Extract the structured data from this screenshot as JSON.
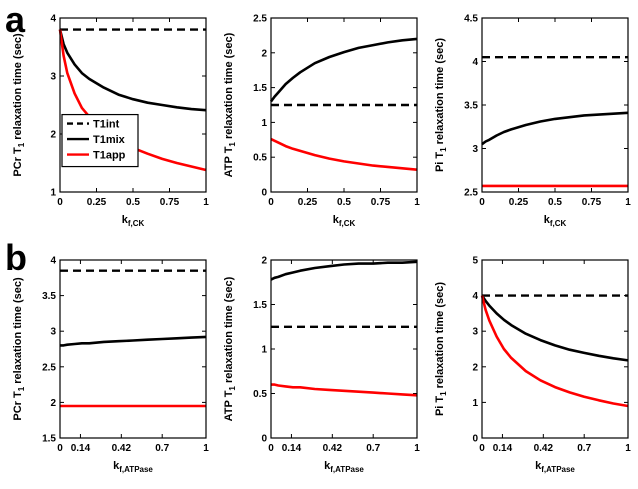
{
  "panels": {
    "a": "a",
    "b": "b"
  },
  "colors": {
    "t1int": "#000000",
    "t1mix": "#000000",
    "t1app": "#ff0000"
  },
  "chart_data": [
    {
      "type": "line",
      "panel": "a",
      "xlabel": {
        "prefix": "k",
        "sub": "f,CK"
      },
      "ylabel": {
        "prefix": "PCr T",
        "sub": "1",
        "suffix": " relaxation time (sec)"
      },
      "xlim": [
        0,
        1
      ],
      "ylim": [
        1,
        4
      ],
      "xticks": [
        0,
        0.25,
        0.5,
        0.75,
        1
      ],
      "xtick_labels": [
        "0",
        "0.25",
        "0.5",
        "0.75",
        "1"
      ],
      "yticks": [
        1,
        2,
        3,
        4
      ],
      "ytick_labels": [
        "1",
        "2",
        "3",
        "4"
      ],
      "x": [
        0,
        0.025,
        0.05,
        0.1,
        0.15,
        0.2,
        0.3,
        0.4,
        0.5,
        0.6,
        0.7,
        0.8,
        0.9,
        1
      ],
      "series": [
        {
          "name": "T1int",
          "color": "#000000",
          "dash": true,
          "values": [
            3.8,
            3.8,
            3.8,
            3.8,
            3.8,
            3.8,
            3.8,
            3.8,
            3.8,
            3.8,
            3.8,
            3.8,
            3.8,
            3.8
          ]
        },
        {
          "name": "T1mix",
          "color": "#000000",
          "dash": false,
          "values": [
            3.8,
            3.55,
            3.4,
            3.2,
            3.05,
            2.95,
            2.8,
            2.68,
            2.6,
            2.54,
            2.5,
            2.46,
            2.43,
            2.41
          ]
        },
        {
          "name": "T1app",
          "color": "#ff0000",
          "dash": false,
          "values": [
            3.8,
            3.35,
            3.05,
            2.7,
            2.45,
            2.3,
            2.05,
            1.9,
            1.76,
            1.66,
            1.57,
            1.5,
            1.44,
            1.38
          ]
        }
      ],
      "legend": {
        "entries": [
          {
            "label": "T1int",
            "color": "#000000",
            "dash": true
          },
          {
            "label": "T1mix",
            "color": "#000000",
            "dash": false
          },
          {
            "label": "T1app",
            "color": "#ff0000",
            "dash": false
          }
        ]
      }
    },
    {
      "type": "line",
      "panel": "a",
      "xlabel": {
        "prefix": "k",
        "sub": "f,CK"
      },
      "ylabel": {
        "prefix": "ATP T",
        "sub": "1",
        "suffix": " relaxation time (sec)"
      },
      "xlim": [
        0,
        1
      ],
      "ylim": [
        0,
        2.5
      ],
      "xticks": [
        0,
        0.25,
        0.5,
        0.75,
        1
      ],
      "xtick_labels": [
        "0",
        "0.25",
        "0.5",
        "0.75",
        "1"
      ],
      "yticks": [
        0,
        0.5,
        1,
        1.5,
        2,
        2.5
      ],
      "ytick_labels": [
        "0",
        "0.5",
        "1",
        "1.5",
        "2",
        "2.5"
      ],
      "x": [
        0,
        0.025,
        0.05,
        0.1,
        0.15,
        0.2,
        0.3,
        0.4,
        0.5,
        0.6,
        0.7,
        0.8,
        0.9,
        1
      ],
      "series": [
        {
          "name": "T1int",
          "color": "#000000",
          "dash": true,
          "values": [
            1.25,
            1.25,
            1.25,
            1.25,
            1.25,
            1.25,
            1.25,
            1.25,
            1.25,
            1.25,
            1.25,
            1.25,
            1.25,
            1.25
          ]
        },
        {
          "name": "T1mix",
          "color": "#000000",
          "dash": false,
          "values": [
            1.3,
            1.37,
            1.43,
            1.55,
            1.64,
            1.72,
            1.85,
            1.94,
            2.01,
            2.07,
            2.11,
            2.15,
            2.18,
            2.2
          ]
        },
        {
          "name": "T1app",
          "color": "#ff0000",
          "dash": false,
          "values": [
            0.76,
            0.735,
            0.71,
            0.66,
            0.62,
            0.59,
            0.53,
            0.48,
            0.44,
            0.41,
            0.38,
            0.36,
            0.34,
            0.32
          ]
        }
      ]
    },
    {
      "type": "line",
      "panel": "a",
      "xlabel": {
        "prefix": "k",
        "sub": "f,CK"
      },
      "ylabel": {
        "prefix": "Pi T",
        "sub": "1",
        "suffix": " relaxation time (sec)"
      },
      "xlim": [
        0,
        1
      ],
      "ylim": [
        2.5,
        4.5
      ],
      "xticks": [
        0,
        0.25,
        0.5,
        0.75,
        1
      ],
      "xtick_labels": [
        "0",
        "0.25",
        "0.5",
        "0.75",
        "1"
      ],
      "yticks": [
        2.5,
        3,
        3.5,
        4,
        4.5
      ],
      "ytick_labels": [
        "2.5",
        "3",
        "3.5",
        "4",
        "4.5"
      ],
      "x": [
        0,
        0.025,
        0.05,
        0.1,
        0.15,
        0.2,
        0.3,
        0.4,
        0.5,
        0.6,
        0.7,
        0.8,
        0.9,
        1
      ],
      "series": [
        {
          "name": "T1int",
          "color": "#000000",
          "dash": true,
          "values": [
            4.05,
            4.05,
            4.05,
            4.05,
            4.05,
            4.05,
            4.05,
            4.05,
            4.05,
            4.05,
            4.05,
            4.05,
            4.05,
            4.05
          ]
        },
        {
          "name": "T1mix",
          "color": "#000000",
          "dash": false,
          "values": [
            3.05,
            3.08,
            3.1,
            3.15,
            3.19,
            3.22,
            3.27,
            3.31,
            3.34,
            3.36,
            3.38,
            3.39,
            3.4,
            3.41
          ]
        },
        {
          "name": "T1app",
          "color": "#ff0000",
          "dash": false,
          "values": [
            2.57,
            2.57,
            2.57,
            2.57,
            2.57,
            2.57,
            2.57,
            2.57,
            2.57,
            2.57,
            2.57,
            2.57,
            2.57,
            2.57
          ]
        }
      ]
    },
    {
      "type": "line",
      "panel": "b",
      "xlabel": {
        "prefix": "k",
        "sub": "f,ATPase"
      },
      "ylabel": {
        "prefix": "PCr T",
        "sub": "1",
        "suffix": " relaxation time (sec)"
      },
      "xlim": [
        0,
        1
      ],
      "ylim": [
        1.5,
        4
      ],
      "xticks": [
        0,
        0.14,
        0.42,
        0.7,
        1
      ],
      "xtick_labels": [
        "0",
        "0.14",
        "0.42",
        "0.7",
        "1"
      ],
      "yticks": [
        1.5,
        2,
        2.5,
        3,
        3.5,
        4
      ],
      "ytick_labels": [
        "1.5",
        "2",
        "2.5",
        "3",
        "3.5",
        "4"
      ],
      "x": [
        0,
        0.025,
        0.05,
        0.1,
        0.15,
        0.2,
        0.3,
        0.4,
        0.5,
        0.6,
        0.7,
        0.8,
        0.9,
        1
      ],
      "series": [
        {
          "name": "T1int",
          "color": "#000000",
          "dash": true,
          "values": [
            3.85,
            3.85,
            3.85,
            3.85,
            3.85,
            3.85,
            3.85,
            3.85,
            3.85,
            3.85,
            3.85,
            3.85,
            3.85,
            3.85
          ]
        },
        {
          "name": "T1mix",
          "color": "#000000",
          "dash": false,
          "values": [
            2.8,
            2.8,
            2.81,
            2.82,
            2.83,
            2.83,
            2.85,
            2.86,
            2.87,
            2.88,
            2.89,
            2.9,
            2.91,
            2.92
          ]
        },
        {
          "name": "T1app",
          "color": "#ff0000",
          "dash": false,
          "values": [
            1.95,
            1.95,
            1.95,
            1.95,
            1.95,
            1.95,
            1.95,
            1.95,
            1.95,
            1.95,
            1.95,
            1.95,
            1.95,
            1.95
          ]
        }
      ]
    },
    {
      "type": "line",
      "panel": "b",
      "xlabel": {
        "prefix": "k",
        "sub": "f,ATPase"
      },
      "ylabel": {
        "prefix": "ATP T",
        "sub": "1",
        "suffix": " relaxation time (sec)"
      },
      "xlim": [
        0,
        1
      ],
      "ylim": [
        0,
        2
      ],
      "xticks": [
        0,
        0.14,
        0.42,
        0.7,
        1
      ],
      "xtick_labels": [
        "0",
        "0.14",
        "0.42",
        "0.7",
        "1"
      ],
      "yticks": [
        0,
        0.5,
        1,
        1.5,
        2
      ],
      "ytick_labels": [
        "0",
        "0.5",
        "1",
        "1.5",
        "2"
      ],
      "x": [
        0,
        0.025,
        0.05,
        0.1,
        0.15,
        0.2,
        0.3,
        0.4,
        0.5,
        0.6,
        0.7,
        0.8,
        0.9,
        1
      ],
      "series": [
        {
          "name": "T1int",
          "color": "#000000",
          "dash": true,
          "values": [
            1.25,
            1.25,
            1.25,
            1.25,
            1.25,
            1.25,
            1.25,
            1.25,
            1.25,
            1.25,
            1.25,
            1.25,
            1.25,
            1.25
          ]
        },
        {
          "name": "T1mix",
          "color": "#000000",
          "dash": false,
          "values": [
            1.78,
            1.8,
            1.81,
            1.84,
            1.86,
            1.88,
            1.91,
            1.93,
            1.95,
            1.96,
            1.96,
            1.97,
            1.97,
            1.98
          ]
        },
        {
          "name": "T1app",
          "color": "#ff0000",
          "dash": false,
          "values": [
            0.6,
            0.6,
            0.59,
            0.58,
            0.57,
            0.57,
            0.55,
            0.54,
            0.53,
            0.52,
            0.51,
            0.5,
            0.49,
            0.48
          ]
        }
      ]
    },
    {
      "type": "line",
      "panel": "b",
      "xlabel": {
        "prefix": "k",
        "sub": "f,ATPase"
      },
      "ylabel": {
        "prefix": "Pi T",
        "sub": "1",
        "suffix": " relaxation time (sec)"
      },
      "xlim": [
        0,
        1
      ],
      "ylim": [
        0,
        5
      ],
      "xticks": [
        0,
        0.14,
        0.42,
        0.7,
        1
      ],
      "xtick_labels": [
        "0",
        "0.14",
        "0.42",
        "0.7",
        "1"
      ],
      "yticks": [
        0,
        1,
        2,
        3,
        4,
        5
      ],
      "ytick_labels": [
        "0",
        "1",
        "2",
        "3",
        "4",
        "5"
      ],
      "x": [
        0,
        0.025,
        0.05,
        0.1,
        0.15,
        0.2,
        0.3,
        0.4,
        0.5,
        0.6,
        0.7,
        0.8,
        0.9,
        1
      ],
      "series": [
        {
          "name": "T1int",
          "color": "#000000",
          "dash": true,
          "values": [
            4,
            4,
            4,
            4,
            4,
            4,
            4,
            4,
            4,
            4,
            4,
            4,
            4,
            4
          ]
        },
        {
          "name": "T1mix",
          "color": "#000000",
          "dash": false,
          "values": [
            4,
            3.85,
            3.72,
            3.5,
            3.32,
            3.17,
            2.93,
            2.75,
            2.6,
            2.48,
            2.39,
            2.31,
            2.24,
            2.18
          ]
        },
        {
          "name": "T1app",
          "color": "#ff0000",
          "dash": false,
          "values": [
            4,
            3.6,
            3.3,
            2.85,
            2.5,
            2.25,
            1.88,
            1.62,
            1.43,
            1.28,
            1.16,
            1.06,
            0.97,
            0.9
          ]
        }
      ]
    }
  ]
}
